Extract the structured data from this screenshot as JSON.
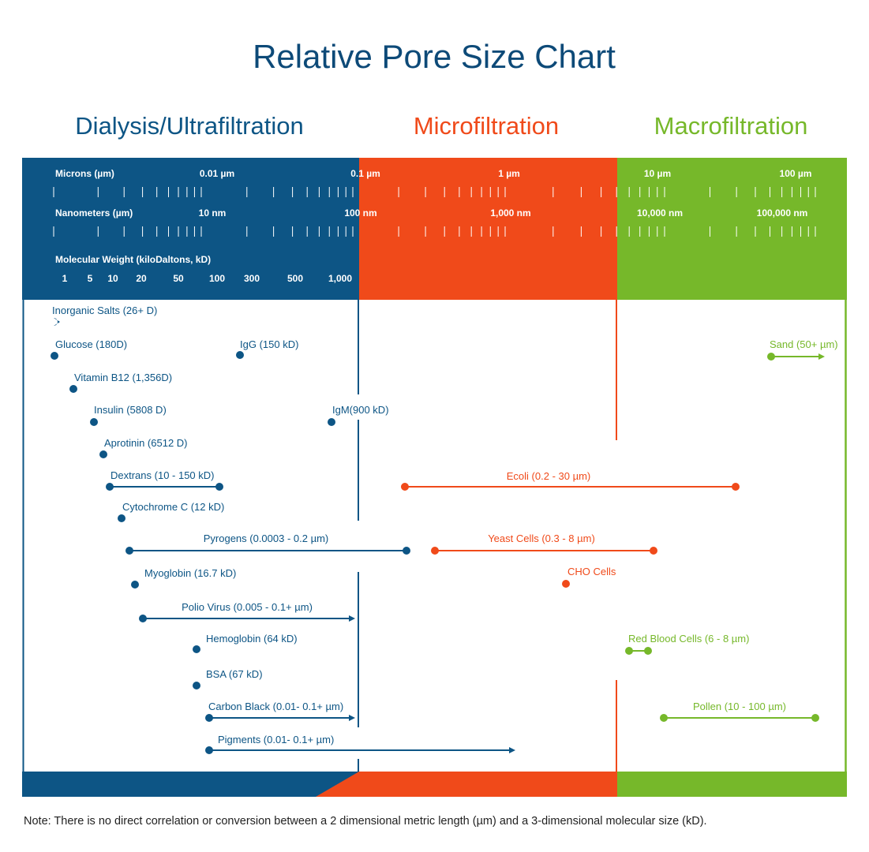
{
  "title": "Relative Pore Size Chart",
  "sections": [
    {
      "label": "Dialysis/Ultrafiltration",
      "color": "#0d5585"
    },
    {
      "label": "Microfiltration",
      "color": "#f04a1a"
    },
    {
      "label": "Macrofiltration",
      "color": "#76b82a"
    }
  ],
  "scales": {
    "microns_label": "Microns (µm)",
    "microns_ticks": [
      "0.01 µm",
      "0.1 µm",
      "1 µm",
      "10 µm",
      "100 µm"
    ],
    "nanometers_label": "Nanometers (µm)",
    "nanometers_ticks": [
      "10 nm",
      "100 nm",
      "1,000 nm",
      "10,000 nm",
      "100,000 nm"
    ],
    "mw_label": "Molecular Weight (kiloDaltons, kD)",
    "mw_ticks": [
      "1",
      "5",
      "10",
      "20",
      "50",
      "100",
      "300",
      "500",
      "1,000"
    ]
  },
  "chart_data": {
    "type": "range",
    "title": "Relative Pore Size Chart",
    "x_scale": "log (µm / nm / kD)",
    "items": [
      {
        "label": "Inorganic Salts (26+ D)",
        "group": "dialysis",
        "min": 0.026,
        "max": null,
        "unit": "kD"
      },
      {
        "label": "Glucose (180D)",
        "group": "dialysis",
        "min": 0.18,
        "max": null,
        "unit": "kD"
      },
      {
        "label": "IgG (150 kD)",
        "group": "dialysis",
        "min": 150,
        "max": null,
        "unit": "kD"
      },
      {
        "label": "Vitamin B12 (1,356D)",
        "group": "dialysis",
        "min": 1.356,
        "max": null,
        "unit": "kD"
      },
      {
        "label": "Insulin (5808 D)",
        "group": "dialysis",
        "min": 5.808,
        "max": null,
        "unit": "kD"
      },
      {
        "label": "IgM(900 kD)",
        "group": "dialysis",
        "min": 900,
        "max": null,
        "unit": "kD"
      },
      {
        "label": "Aprotinin (6512 D)",
        "group": "dialysis",
        "min": 6.512,
        "max": null,
        "unit": "kD"
      },
      {
        "label": "Dextrans (10 - 150 kD)",
        "group": "dialysis",
        "min": 10,
        "max": 150,
        "unit": "kD"
      },
      {
        "label": "Ecoli (0.2 - 30 µm)",
        "group": "micro",
        "min": 0.2,
        "max": 30,
        "unit": "µm"
      },
      {
        "label": "Cytochrome C (12 kD)",
        "group": "dialysis",
        "min": 12,
        "max": null,
        "unit": "kD"
      },
      {
        "label": "Pyrogens (0.0003 - 0.2 µm)",
        "group": "dialysis",
        "min": 0.0003,
        "max": 0.2,
        "unit": "µm"
      },
      {
        "label": "Yeast Cells (0.3 - 8 µm)",
        "group": "micro",
        "min": 0.3,
        "max": 8,
        "unit": "µm"
      },
      {
        "label": "Myoglobin (16.7 kD)",
        "group": "dialysis",
        "min": 16.7,
        "max": null,
        "unit": "kD"
      },
      {
        "label": "CHO Cells",
        "group": "micro",
        "min": null,
        "max": null,
        "unit": "µm"
      },
      {
        "label": "Polio Virus (0.005 - 0.1+ µm)",
        "group": "dialysis",
        "min": 0.005,
        "max": 0.1,
        "open_ended": true,
        "unit": "µm"
      },
      {
        "label": "Red Blood Cells (6 - 8 µm)",
        "group": "macro",
        "min": 6,
        "max": 8,
        "unit": "µm"
      },
      {
        "label": "Hemoglobin (64 kD)",
        "group": "dialysis",
        "min": 64,
        "max": null,
        "unit": "kD"
      },
      {
        "label": "BSA (67 kD)",
        "group": "dialysis",
        "min": 67,
        "max": null,
        "unit": "kD"
      },
      {
        "label": "Carbon Black (0.01- 0.1+ µm)",
        "group": "dialysis",
        "min": 0.01,
        "max": 0.1,
        "open_ended": true,
        "unit": "µm"
      },
      {
        "label": "Pollen (10 - 100 µm)",
        "group": "macro",
        "min": 10,
        "max": 100,
        "unit": "µm"
      },
      {
        "label": "Pigments (0.01- 0.1+ µm)",
        "group": "dialysis",
        "min": 0.01,
        "max": 0.1,
        "open_ended": true,
        "unit": "µm"
      },
      {
        "label": "Sand (50+ µm)",
        "group": "macro",
        "min": 50,
        "max": null,
        "open_ended": true,
        "unit": "µm"
      }
    ]
  },
  "note": "Note: There is no direct correlation or conversion between a 2 dimensional metric length (µm) and a 3-dimensional molecular size (kD)."
}
